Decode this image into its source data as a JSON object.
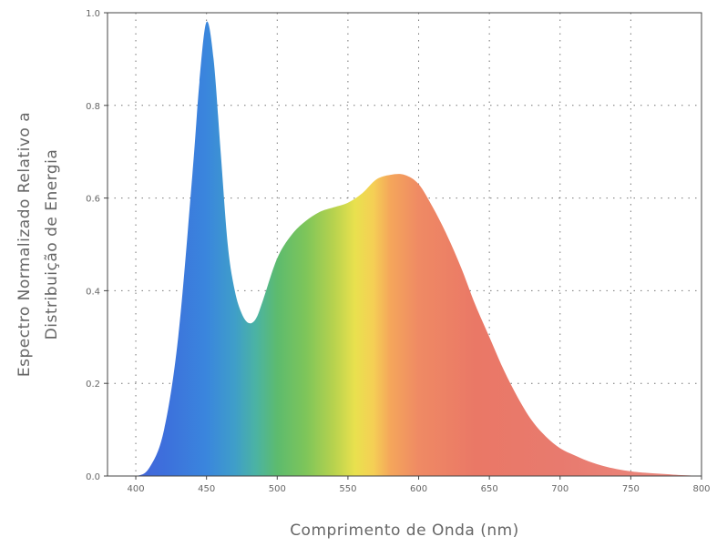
{
  "chart_data": {
    "type": "area",
    "title": "",
    "xlabel": "Comprimento de Onda (nm)",
    "ylabel_lines": [
      "Espectro Normalizado Relativo a",
      "Distribuição de Energia"
    ],
    "xlim": [
      380,
      800
    ],
    "ylim": [
      0,
      1.0
    ],
    "x_ticks": [
      400,
      450,
      500,
      550,
      600,
      650,
      700,
      750,
      800
    ],
    "y_ticks": [
      0.0,
      0.2,
      0.4,
      0.6,
      0.8,
      1.0
    ],
    "y_tick_labels": [
      "0.0",
      "0.2",
      "0.4",
      "0.6",
      "0.8",
      "1.0"
    ],
    "grid": true,
    "fill": "visible-spectrum gradient",
    "series": [
      {
        "x": [
          380,
          400,
          410,
          420,
          430,
          440,
          445,
          450,
          455,
          460,
          465,
          470,
          475,
          480,
          485,
          490,
          500,
          510,
          520,
          530,
          540,
          550,
          560,
          570,
          580,
          590,
          600,
          610,
          620,
          630,
          640,
          650,
          660,
          670,
          680,
          690,
          700,
          710,
          720,
          730,
          740,
          750,
          760,
          780,
          800
        ],
        "y": [
          0.0,
          0.0,
          0.02,
          0.1,
          0.3,
          0.65,
          0.85,
          0.98,
          0.9,
          0.7,
          0.5,
          0.4,
          0.35,
          0.33,
          0.34,
          0.38,
          0.47,
          0.52,
          0.55,
          0.57,
          0.58,
          0.59,
          0.61,
          0.64,
          0.65,
          0.65,
          0.63,
          0.58,
          0.52,
          0.45,
          0.37,
          0.3,
          0.23,
          0.17,
          0.12,
          0.085,
          0.06,
          0.045,
          0.032,
          0.022,
          0.015,
          0.01,
          0.007,
          0.003,
          0.0
        ]
      }
    ]
  }
}
